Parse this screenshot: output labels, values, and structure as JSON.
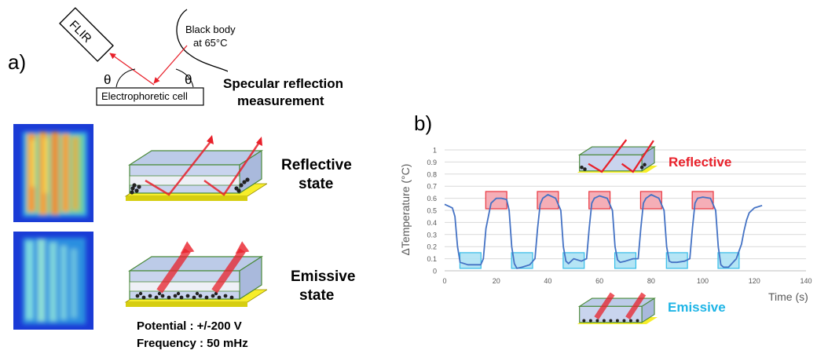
{
  "panel_a": {
    "label": "a)",
    "schematic": {
      "camera_label": "FLIR",
      "source_label_line1": "Black body",
      "source_label_line2": "at 65°C",
      "cell_label": "Electrophoretic cell",
      "angle_symbol": "θ"
    },
    "measurement_title_line1": "Specular reflection",
    "measurement_title_line2": "measurement",
    "reflective_label_line1": "Reflective",
    "reflective_label_line2": "state",
    "emissive_label_line1": "Emissive",
    "emissive_label_line2": "state",
    "potential_text": "Potential : +/-200 V",
    "frequency_text": "Frequency : 50 mHz"
  },
  "panel_b": {
    "label": "b)",
    "reflective_tag": "Reflective",
    "emissive_tag": "Emissive",
    "colors": {
      "reflective": "#e8202a",
      "emissive": "#1fb5e6",
      "line": "#4472c4"
    }
  },
  "chart_data": {
    "type": "line",
    "xlabel": "Time (s)",
    "ylabel": "ΔTemperature (°C)",
    "xlim": [
      0,
      140
    ],
    "ylim": [
      0,
      1
    ],
    "xticks": [
      0,
      20,
      40,
      60,
      80,
      100,
      120,
      140
    ],
    "yticks": [
      0,
      0.1,
      0.2,
      0.3,
      0.4,
      0.5,
      0.6,
      0.7,
      0.8,
      0.9,
      1
    ],
    "grid": true,
    "series": [
      {
        "x": [
          0,
          3,
          4,
          5,
          6,
          9,
          12,
          14,
          15,
          16,
          18,
          20,
          22,
          24,
          25,
          26,
          27,
          28,
          30,
          33,
          35,
          36,
          37,
          38,
          40,
          43,
          45,
          46,
          47,
          48,
          50,
          53,
          55,
          56,
          57,
          58,
          60,
          63,
          65,
          66,
          67,
          68,
          70,
          73,
          75,
          76,
          77,
          78,
          80,
          83,
          85,
          86,
          87,
          88,
          90,
          93,
          95,
          96,
          97,
          98,
          100,
          103,
          105,
          106,
          107,
          108,
          110,
          113,
          115,
          116,
          117,
          118,
          120,
          123
        ],
        "y": [
          0.55,
          0.52,
          0.45,
          0.2,
          0.07,
          0.05,
          0.05,
          0.05,
          0.1,
          0.35,
          0.56,
          0.6,
          0.6,
          0.59,
          0.5,
          0.2,
          0.06,
          0.02,
          0.03,
          0.05,
          0.1,
          0.35,
          0.55,
          0.6,
          0.63,
          0.6,
          0.5,
          0.2,
          0.08,
          0.06,
          0.1,
          0.08,
          0.1,
          0.35,
          0.56,
          0.6,
          0.62,
          0.6,
          0.5,
          0.2,
          0.09,
          0.07,
          0.08,
          0.1,
          0.1,
          0.35,
          0.56,
          0.6,
          0.63,
          0.6,
          0.5,
          0.2,
          0.08,
          0.07,
          0.07,
          0.08,
          0.1,
          0.35,
          0.56,
          0.6,
          0.61,
          0.6,
          0.5,
          0.2,
          0.05,
          0.03,
          0.03,
          0.1,
          0.22,
          0.33,
          0.42,
          0.48,
          0.52,
          0.54
        ]
      }
    ],
    "reflective_phases": [
      [
        15,
        25
      ],
      [
        35,
        45
      ],
      [
        55,
        65
      ],
      [
        75,
        85
      ],
      [
        95,
        105
      ]
    ],
    "emissive_phases": [
      [
        5,
        15
      ],
      [
        25,
        35
      ],
      [
        45,
        55
      ],
      [
        65,
        75
      ],
      [
        85,
        95
      ],
      [
        105,
        115
      ]
    ]
  }
}
